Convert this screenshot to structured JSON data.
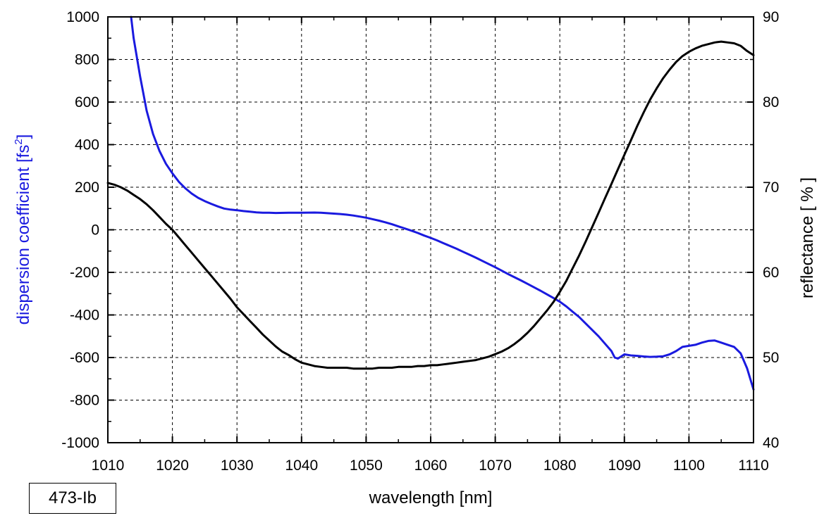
{
  "chart_data": {
    "type": "line",
    "xlabel": "wavelength [nm]",
    "ylabel_left": "dispersion coefficient [fs",
    "ylabel_left_sup": "2",
    "ylabel_left_close": "]",
    "ylabel_right": "reflectance [ % ]",
    "xlim": [
      1010,
      1110
    ],
    "ylim_left": [
      -1000,
      1000
    ],
    "ylim_right": [
      40,
      90
    ],
    "x_ticks": [
      "1010",
      "1020",
      "1030",
      "1040",
      "1050",
      "1060",
      "1070",
      "1080",
      "1090",
      "1100",
      "1110"
    ],
    "y_left_ticks": [
      "1000",
      "800",
      "600",
      "400",
      "200",
      "0",
      "-200",
      "-400",
      "-600",
      "-800",
      "-1000"
    ],
    "y_right_ticks": [
      "90",
      "80",
      "70",
      "60",
      "50",
      "40"
    ],
    "grid": true,
    "colors": {
      "dispersion": "#1a1adf",
      "reflectance": "#000000",
      "left_axis_label": "#1a1adf"
    },
    "series": [
      {
        "axis": "left",
        "color": "#1a1adf",
        "x": [
          1013.6,
          1014.0,
          1015.0,
          1016.0,
          1017.0,
          1018.0,
          1019.0,
          1020.0,
          1021.0,
          1022.0,
          1023.0,
          1024.0,
          1025.0,
          1026.0,
          1027.0,
          1028.0,
          1029.0,
          1030.0,
          1031.0,
          1032.0,
          1033.0,
          1034.0,
          1035.0,
          1036.0,
          1038.0,
          1040.0,
          1042.0,
          1043.0,
          1044.0,
          1045.0,
          1046.0,
          1047.0,
          1048.0,
          1049.0,
          1050.0,
          1051.0,
          1052.0,
          1053.0,
          1054.0,
          1055.0,
          1056.0,
          1057.0,
          1058.0,
          1059.0,
          1060.0,
          1061.0,
          1062.0,
          1063.0,
          1064.0,
          1065.0,
          1066.0,
          1067.0,
          1068.0,
          1069.0,
          1070.0,
          1071.0,
          1072.0,
          1073.0,
          1074.0,
          1075.0,
          1076.0,
          1077.0,
          1078.0,
          1079.0,
          1080.0,
          1081.0,
          1082.0,
          1083.0,
          1084.0,
          1085.0,
          1086.0,
          1087.0,
          1088.0,
          1088.5,
          1089.0,
          1089.5,
          1090.0,
          1091.0,
          1092.0,
          1093.0,
          1094.0,
          1095.0,
          1096.0,
          1097.0,
          1098.0,
          1099.0,
          1100.0,
          1101.0,
          1102.0,
          1103.0,
          1104.0,
          1105.0,
          1106.0,
          1107.0,
          1108.0,
          1109.0,
          1110.0
        ],
        "y": [
          1000,
          900,
          720,
          560,
          450,
          370,
          310,
          265,
          225,
          195,
          170,
          150,
          135,
          122,
          110,
          100,
          95,
          92,
          88,
          85,
          82,
          80,
          80,
          79,
          80,
          80,
          81,
          80,
          78,
          76,
          74,
          71,
          67,
          62,
          57,
          50,
          43,
          35,
          26,
          16,
          6,
          -4,
          -15,
          -27,
          -38,
          -50,
          -63,
          -76,
          -89,
          -103,
          -117,
          -131,
          -146,
          -161,
          -176,
          -192,
          -208,
          -223,
          -238,
          -254,
          -270,
          -286,
          -303,
          -320,
          -338,
          -360,
          -385,
          -410,
          -440,
          -470,
          -500,
          -535,
          -570,
          -600,
          -605,
          -595,
          -585,
          -590,
          -592,
          -595,
          -597,
          -596,
          -594,
          -585,
          -570,
          -550,
          -545,
          -540,
          -530,
          -522,
          -520,
          -530,
          -540,
          -550,
          -580,
          -650,
          -750
        ]
      },
      {
        "axis": "right",
        "color": "#000000",
        "x": [
          1010.0,
          1011.0,
          1012.0,
          1013.0,
          1014.0,
          1015.0,
          1016.0,
          1017.0,
          1018.0,
          1019.0,
          1020.0,
          1021.0,
          1022.0,
          1023.0,
          1024.0,
          1025.0,
          1026.0,
          1027.0,
          1028.0,
          1029.0,
          1030.0,
          1031.0,
          1032.0,
          1033.0,
          1034.0,
          1035.0,
          1036.0,
          1037.0,
          1038.0,
          1039.0,
          1040.0,
          1041.0,
          1042.0,
          1043.0,
          1044.0,
          1045.0,
          1046.0,
          1047.0,
          1048.0,
          1049.0,
          1050.0,
          1051.0,
          1052.0,
          1053.0,
          1054.0,
          1055.0,
          1056.0,
          1057.0,
          1058.0,
          1059.0,
          1060.0,
          1061.0,
          1062.0,
          1063.0,
          1064.0,
          1065.0,
          1066.0,
          1067.0,
          1068.0,
          1069.0,
          1070.0,
          1071.0,
          1072.0,
          1073.0,
          1074.0,
          1075.0,
          1076.0,
          1077.0,
          1078.0,
          1079.0,
          1080.0,
          1081.0,
          1082.0,
          1083.0,
          1084.0,
          1085.0,
          1086.0,
          1087.0,
          1088.0,
          1089.0,
          1090.0,
          1091.0,
          1092.0,
          1093.0,
          1094.0,
          1095.0,
          1096.0,
          1097.0,
          1098.0,
          1099.0,
          1100.0,
          1101.0,
          1102.0,
          1103.0,
          1104.0,
          1105.0,
          1106.0,
          1107.0,
          1108.0,
          1109.0,
          1110.0
        ],
        "y": [
          70.5,
          70.3,
          70.0,
          69.6,
          69.1,
          68.6,
          68.0,
          67.3,
          66.5,
          65.7,
          65.0,
          64.1,
          63.2,
          62.3,
          61.4,
          60.5,
          59.6,
          58.7,
          57.8,
          56.9,
          55.9,
          55.1,
          54.3,
          53.5,
          52.7,
          52.0,
          51.3,
          50.7,
          50.3,
          49.8,
          49.4,
          49.2,
          49.0,
          48.9,
          48.8,
          48.8,
          48.8,
          48.8,
          48.7,
          48.7,
          48.7,
          48.7,
          48.8,
          48.8,
          48.8,
          48.9,
          48.9,
          48.9,
          49.0,
          49.0,
          49.1,
          49.1,
          49.2,
          49.3,
          49.4,
          49.5,
          49.6,
          49.7,
          49.9,
          50.1,
          50.4,
          50.7,
          51.1,
          51.6,
          52.2,
          52.9,
          53.7,
          54.6,
          55.5,
          56.5,
          57.7,
          59.0,
          60.5,
          62.0,
          63.6,
          65.3,
          67.0,
          68.7,
          70.4,
          72.1,
          73.8,
          75.5,
          77.2,
          78.8,
          80.3,
          81.6,
          82.8,
          83.8,
          84.7,
          85.4,
          85.9,
          86.3,
          86.6,
          86.8,
          87.0,
          87.1,
          87.0,
          86.9,
          86.6,
          86.0,
          85.5
        ]
      }
    ]
  },
  "sample_label": "473-Ib"
}
